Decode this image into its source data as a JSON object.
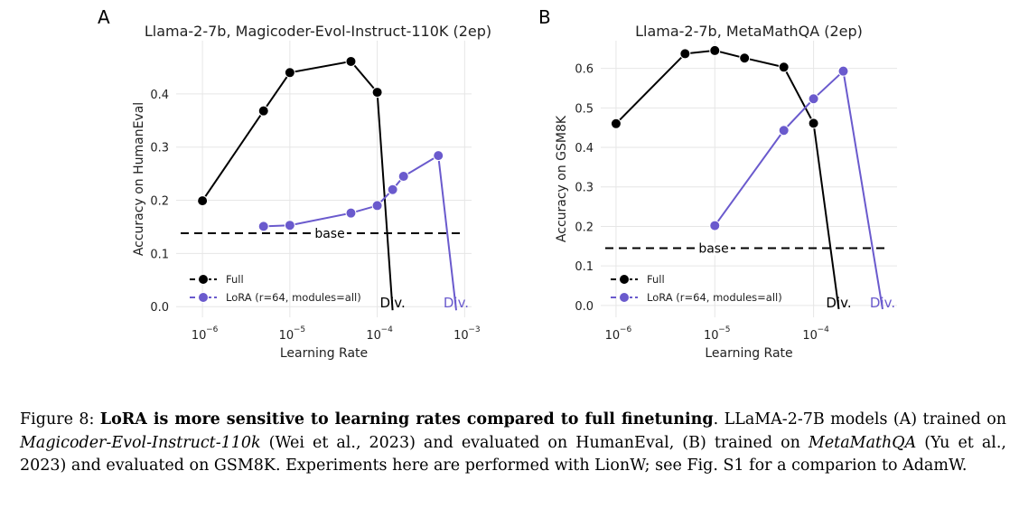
{
  "chart_data": [
    {
      "panel_label": "A",
      "type": "line",
      "title": "Llama-2-7b, Magicoder-Evol-Instruct-110K (2ep)",
      "xlabel": "Learning Rate",
      "ylabel": "Accuracy on HumanEval",
      "xscale": "log",
      "xlim": [
        5e-07,
        0.0012
      ],
      "ylim": [
        -0.02,
        0.5
      ],
      "xticks": [
        1e-06,
        1e-05,
        0.0001,
        0.001
      ],
      "xtick_labels": [
        "10",
        "10",
        "10",
        "10"
      ],
      "xtick_exponents": [
        "−6",
        "−5",
        "−4",
        "−3"
      ],
      "yticks": [
        0.0,
        0.1,
        0.2,
        0.3,
        0.4
      ],
      "ytick_labels": [
        "0.0",
        "0.1",
        "0.2",
        "0.3",
        "0.4"
      ],
      "grid": true,
      "legend_position": "bottom-left",
      "baseline": {
        "label": "base",
        "value": 0.138
      },
      "series": [
        {
          "name": "Full",
          "color": "#000000",
          "x": [
            1e-06,
            5e-06,
            1e-05,
            5e-05,
            0.0001
          ],
          "values": [
            0.199,
            0.368,
            0.44,
            0.461,
            0.403
          ],
          "divergence": {
            "x": 0.00015,
            "label": "Div."
          }
        },
        {
          "name": "LoRA (r=64, modules=all)",
          "color": "#6a5acd",
          "x": [
            5e-06,
            1e-05,
            5e-05,
            0.0001,
            0.00015,
            0.0002,
            0.0005
          ],
          "values": [
            0.151,
            0.153,
            0.176,
            0.19,
            0.22,
            0.245,
            0.284
          ],
          "divergence": {
            "x": 0.0008,
            "label": "Div."
          }
        }
      ]
    },
    {
      "panel_label": "B",
      "type": "line",
      "title": "Llama-2-7b, MetaMathQA (2ep)",
      "xlabel": "Learning Rate",
      "ylabel": "Accuracy on GSM8K",
      "xscale": "log",
      "xlim": [
        7e-07,
        0.0007
      ],
      "ylim": [
        -0.03,
        0.67
      ],
      "xticks": [
        1e-06,
        1e-05,
        0.0001
      ],
      "xtick_labels": [
        "10",
        "10",
        "10"
      ],
      "xtick_exponents": [
        "−6",
        "−5",
        "−4"
      ],
      "yticks": [
        0.0,
        0.1,
        0.2,
        0.3,
        0.4,
        0.5,
        0.6
      ],
      "ytick_labels": [
        "0.0",
        "0.1",
        "0.2",
        "0.3",
        "0.4",
        "0.5",
        "0.6"
      ],
      "grid": true,
      "legend_position": "bottom-left",
      "baseline": {
        "label": "base",
        "value": 0.145
      },
      "series": [
        {
          "name": "Full",
          "color": "#000000",
          "x": [
            1e-06,
            5e-06,
            1e-05,
            2e-05,
            5e-05,
            0.0001
          ],
          "values": [
            0.46,
            0.637,
            0.645,
            0.626,
            0.603,
            0.461
          ],
          "divergence": {
            "x": 0.00018,
            "label": "Div."
          }
        },
        {
          "name": "LoRA (r=64, modules=all)",
          "color": "#6a5acd",
          "x": [
            1e-05,
            5e-05,
            0.0001,
            0.0002
          ],
          "values": [
            0.202,
            0.443,
            0.523,
            0.593
          ],
          "divergence": {
            "x": 0.0005,
            "label": "Div."
          }
        }
      ]
    }
  ],
  "caption": {
    "prefix": "Figure 8: ",
    "title": "LoRA is more sensitive to learning rates compared to full finetuning",
    "text1": ". LLaMA-2-7B models (A) trained on ",
    "italic1": "Magicoder-Evol-Instruct-110k",
    "text2": " (Wei et al., 2023) and evaluated on HumanEval, (B) trained on ",
    "italic2": "MetaMathQA",
    "text3": " (Yu et al., 2023) and evaluated on GSM8K. Experiments here are performed with LionW; see Fig. S1 for a comparion to AdamW."
  }
}
